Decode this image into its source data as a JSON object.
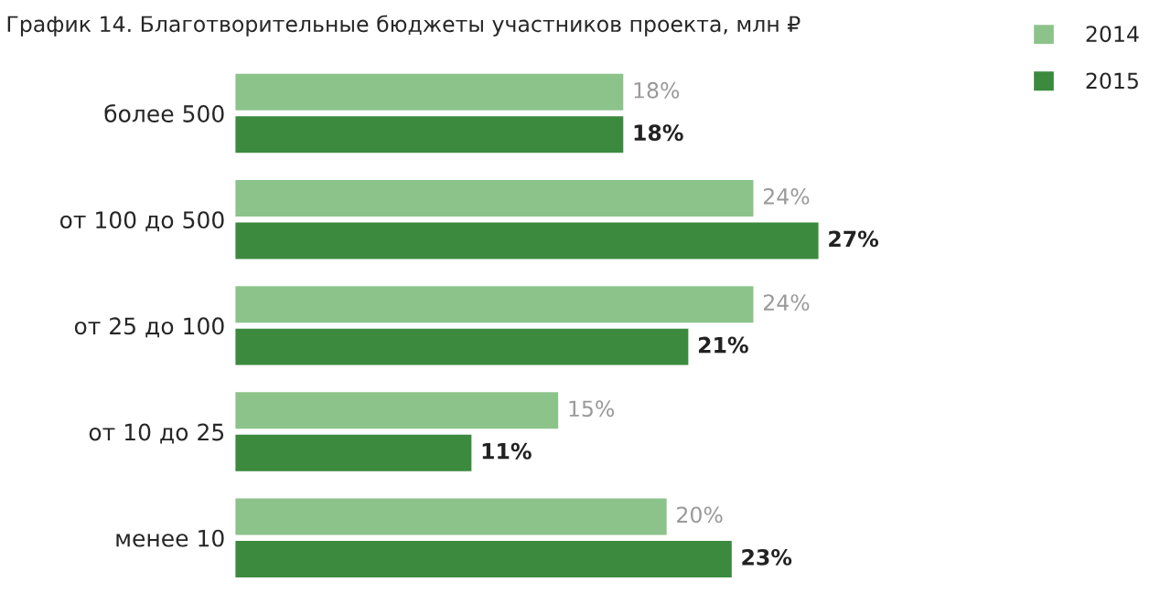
{
  "chart_data": {
    "type": "bar",
    "orientation": "horizontal",
    "title": "График 14. Благотворительные бюджеты участников проекта, млн ₽",
    "categories": [
      "более 500",
      "от 100 до 500",
      "от 25 до 100",
      "от 10 до 25",
      "менее 10"
    ],
    "series": [
      {
        "name": "2014",
        "color": "#8cc38a",
        "values": [
          18,
          24,
          24,
          15,
          20
        ],
        "value_labels": [
          "18%",
          "24%",
          "24%",
          "15%",
          "20%"
        ]
      },
      {
        "name": "2015",
        "color": "#3b8a3e",
        "values": [
          18,
          27,
          21,
          11,
          23
        ],
        "value_labels": [
          "18%",
          "27%",
          "21%",
          "11%",
          "23%"
        ]
      }
    ],
    "legend": "top right",
    "tick_labels": "y",
    "grid": false
  }
}
